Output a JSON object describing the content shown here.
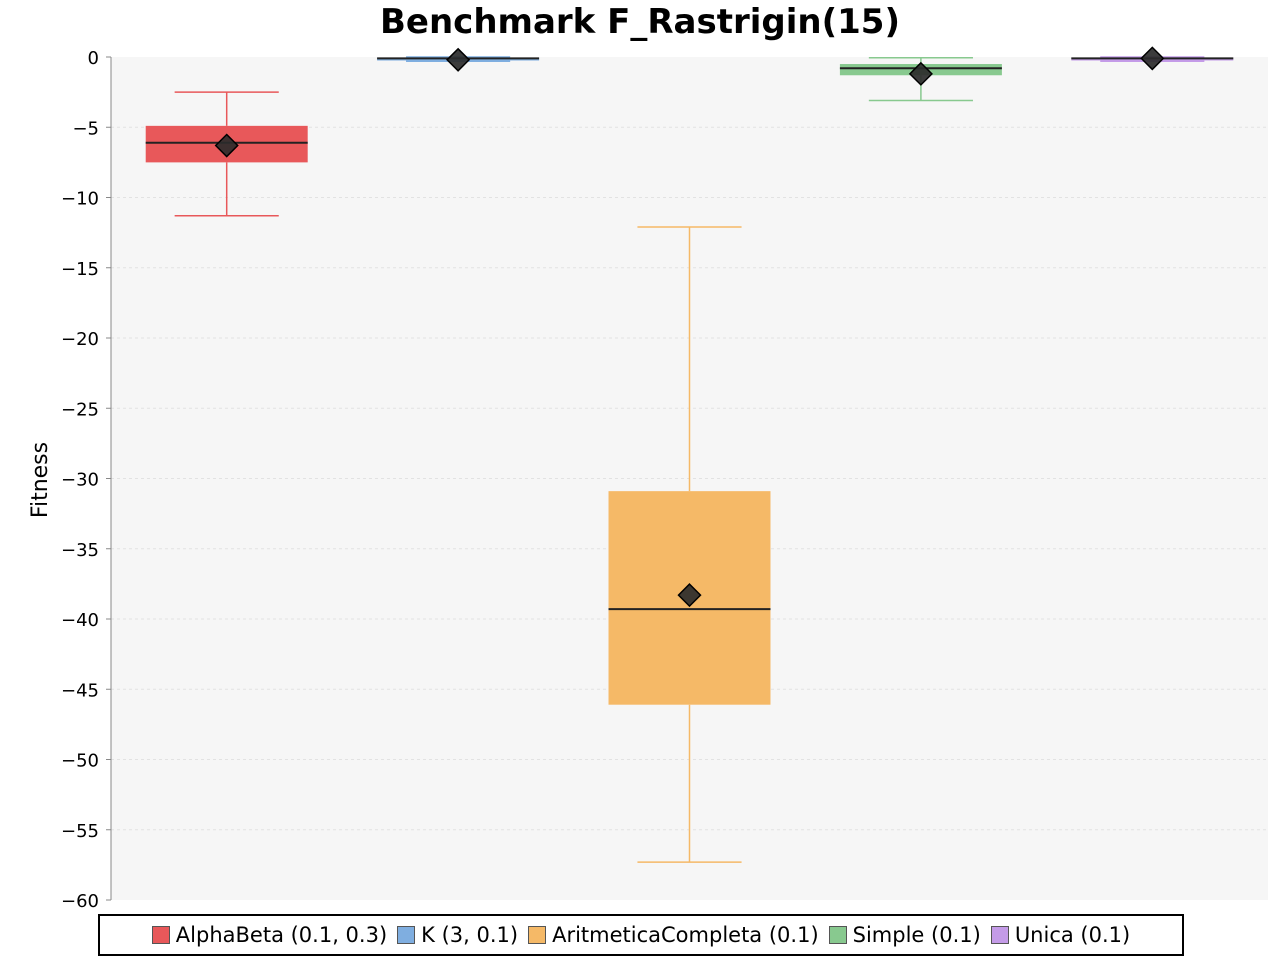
{
  "chart_data": {
    "type": "box",
    "title": "Benchmark F_Rastrigin(15)",
    "xlabel": "",
    "ylabel": "Fitness",
    "ylim": [
      -60,
      0
    ],
    "yticks": [
      0,
      -5,
      -10,
      -15,
      -20,
      -25,
      -30,
      -35,
      -40,
      -45,
      -50,
      -55,
      -60
    ],
    "grid": true,
    "legend_position": "bottom",
    "series": [
      {
        "name": "AlphaBeta (0.1, 0.3)",
        "color": "#e8585a",
        "whisker_high": -2.5,
        "q3": -4.9,
        "median": -6.1,
        "mean": -6.3,
        "q1": -7.5,
        "whisker_low": -11.3
      },
      {
        "name": "K (3, 0.1)",
        "color": "#7faee0",
        "whisker_high": 0,
        "q3": -0.05,
        "median": -0.1,
        "mean": -0.2,
        "q1": -0.25,
        "whisker_low": -0.3
      },
      {
        "name": "AritmeticaCompleta (0.1)",
        "color": "#f5b967",
        "whisker_high": -12.1,
        "q3": -30.9,
        "median": -39.3,
        "mean": -38.3,
        "q1": -46.1,
        "whisker_low": -57.3
      },
      {
        "name": "Simple (0.1)",
        "color": "#88c98f",
        "whisker_high": -0.05,
        "q3": -0.5,
        "median": -0.8,
        "mean": -1.2,
        "q1": -1.3,
        "whisker_low": -3.1
      },
      {
        "name": "Unica (0.1)",
        "color": "#c49be8",
        "whisker_high": 0,
        "q3": -0.05,
        "median": -0.1,
        "mean": -0.1,
        "q1": -0.25,
        "whisker_low": -0.3
      }
    ]
  }
}
